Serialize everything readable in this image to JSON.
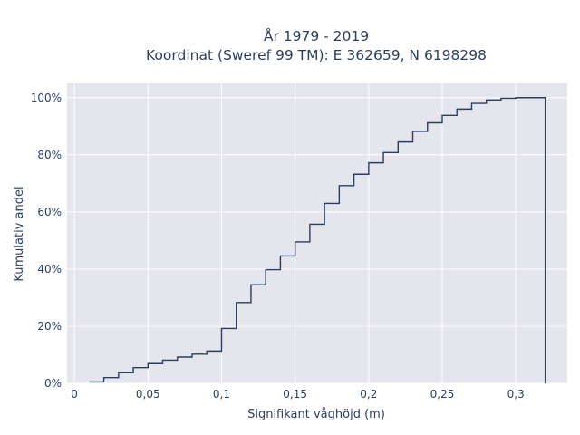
{
  "chart_data": {
    "type": "line",
    "title": "År 1979 - 2019",
    "subtitle": "Koordinat (Sweref 99 TM): E 362659, N 6198298",
    "xlabel": "Signifikant våghöjd (m)",
    "ylabel": "Kumulativ andel",
    "xlim": [
      -0.005,
      0.335
    ],
    "ylim": [
      0,
      1.05
    ],
    "x_ticks": [
      0,
      0.05,
      0.1,
      0.15,
      0.2,
      0.25,
      0.3
    ],
    "x_tick_labels": [
      "0",
      "0,05",
      "0,1",
      "0,15",
      "0,2",
      "0,25",
      "0,3"
    ],
    "y_ticks": [
      0,
      0.2,
      0.4,
      0.6,
      0.8,
      1.0
    ],
    "y_tick_labels": [
      "0%",
      "20%",
      "40%",
      "60%",
      "80%",
      "100%"
    ],
    "grid": true,
    "line_color": "#2a3f5f",
    "plot_bg": "#e5e5ee",
    "step_edges": [
      0.01,
      0.02,
      0.03,
      0.04,
      0.05,
      0.06,
      0.07,
      0.08,
      0.09,
      0.1,
      0.11,
      0.12,
      0.13,
      0.14,
      0.15,
      0.16,
      0.17,
      0.18,
      0.19,
      0.2,
      0.21,
      0.22,
      0.23,
      0.24,
      0.25,
      0.26,
      0.27,
      0.28,
      0.29,
      0.3,
      0.31,
      0.32
    ],
    "cumulative_values": [
      0.005,
      0.02,
      0.037,
      0.055,
      0.069,
      0.081,
      0.092,
      0.102,
      0.113,
      0.192,
      0.283,
      0.345,
      0.398,
      0.446,
      0.495,
      0.557,
      0.63,
      0.692,
      0.732,
      0.772,
      0.808,
      0.845,
      0.882,
      0.912,
      0.938,
      0.96,
      0.98,
      0.992,
      0.998,
      1.0,
      1.0
    ]
  }
}
